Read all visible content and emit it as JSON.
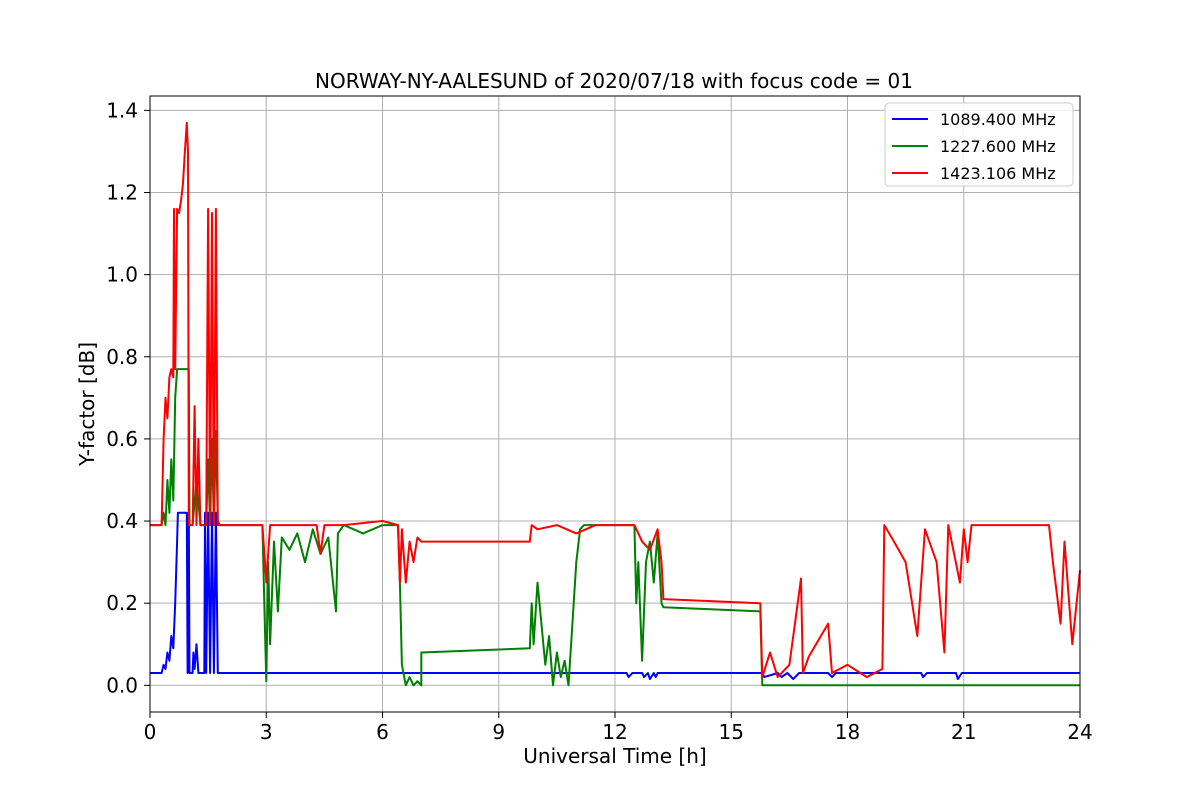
{
  "chart_data": {
    "type": "line",
    "title": "NORWAY-NY-AALESUND of 2020/07/18 with focus code = 01",
    "xlabel": "Universal Time [h]",
    "ylabel": "Y-factor [dB]",
    "xlim": [
      0,
      24
    ],
    "ylim": [
      -0.065,
      1.435
    ],
    "xticks": [
      0,
      3,
      6,
      9,
      12,
      15,
      18,
      21,
      24
    ],
    "yticks": [
      0.0,
      0.2,
      0.4,
      0.6,
      0.8,
      1.0,
      1.2,
      1.4
    ],
    "xtick_labels": [
      "0",
      "3",
      "6",
      "9",
      "12",
      "15",
      "18",
      "21",
      "24"
    ],
    "ytick_labels": [
      "0.0",
      "0.2",
      "0.4",
      "0.6",
      "0.8",
      "1.0",
      "1.2",
      "1.4"
    ],
    "grid": true,
    "legend_position": "top-right",
    "series": [
      {
        "name": "1089.400 MHz",
        "color": "#0000ff",
        "points": [
          [
            0,
            0.03
          ],
          [
            0.3,
            0.03
          ],
          [
            0.35,
            0.05
          ],
          [
            0.4,
            0.04
          ],
          [
            0.45,
            0.08
          ],
          [
            0.5,
            0.06
          ],
          [
            0.55,
            0.12
          ],
          [
            0.6,
            0.09
          ],
          [
            0.65,
            0.2
          ],
          [
            0.7,
            0.35
          ],
          [
            0.72,
            0.42
          ],
          [
            0.75,
            0.42
          ],
          [
            0.95,
            0.42
          ],
          [
            0.97,
            0.03
          ],
          [
            1.0,
            0.42
          ],
          [
            1.02,
            0.03
          ],
          [
            1.1,
            0.03
          ],
          [
            1.12,
            0.08
          ],
          [
            1.15,
            0.04
          ],
          [
            1.2,
            0.1
          ],
          [
            1.25,
            0.03
          ],
          [
            1.4,
            0.03
          ],
          [
            1.42,
            0.42
          ],
          [
            1.45,
            0.03
          ],
          [
            1.5,
            0.42
          ],
          [
            1.55,
            0.03
          ],
          [
            1.6,
            0.42
          ],
          [
            1.65,
            0.03
          ],
          [
            1.7,
            0.42
          ],
          [
            1.75,
            0.03
          ],
          [
            1.8,
            0.03
          ],
          [
            6.0,
            0.03
          ],
          [
            12.3,
            0.03
          ],
          [
            12.35,
            0.02
          ],
          [
            12.45,
            0.03
          ],
          [
            12.7,
            0.03
          ],
          [
            12.75,
            0.02
          ],
          [
            12.85,
            0.03
          ],
          [
            12.9,
            0.015
          ],
          [
            13.0,
            0.03
          ],
          [
            13.05,
            0.02
          ],
          [
            13.1,
            0.03
          ],
          [
            15.8,
            0.03
          ],
          [
            15.85,
            0.02
          ],
          [
            16.2,
            0.03
          ],
          [
            16.3,
            0.02
          ],
          [
            16.45,
            0.03
          ],
          [
            16.6,
            0.015
          ],
          [
            16.75,
            0.03
          ],
          [
            17.5,
            0.03
          ],
          [
            17.6,
            0.02
          ],
          [
            17.7,
            0.03
          ],
          [
            19.9,
            0.03
          ],
          [
            19.95,
            0.02
          ],
          [
            20.05,
            0.03
          ],
          [
            20.8,
            0.03
          ],
          [
            20.85,
            0.015
          ],
          [
            20.95,
            0.03
          ],
          [
            24,
            0.03
          ]
        ]
      },
      {
        "name": "1227.600 MHz",
        "color": "#008000",
        "points": [
          [
            0,
            0.39
          ],
          [
            0.3,
            0.39
          ],
          [
            0.35,
            0.42
          ],
          [
            0.4,
            0.39
          ],
          [
            0.45,
            0.5
          ],
          [
            0.5,
            0.42
          ],
          [
            0.55,
            0.55
          ],
          [
            0.6,
            0.45
          ],
          [
            0.65,
            0.7
          ],
          [
            0.7,
            0.77
          ],
          [
            0.95,
            0.77
          ],
          [
            1.0,
            0.77
          ],
          [
            1.02,
            0.39
          ],
          [
            1.1,
            0.39
          ],
          [
            1.2,
            0.5
          ],
          [
            1.3,
            0.39
          ],
          [
            1.45,
            0.39
          ],
          [
            1.5,
            0.55
          ],
          [
            1.55,
            0.39
          ],
          [
            1.6,
            0.6
          ],
          [
            1.65,
            0.39
          ],
          [
            1.7,
            0.62
          ],
          [
            1.75,
            0.4
          ],
          [
            1.8,
            0.39
          ],
          [
            2.9,
            0.39
          ],
          [
            2.95,
            0.2
          ],
          [
            3.0,
            0.01
          ],
          [
            3.05,
            0.3
          ],
          [
            3.1,
            0.1
          ],
          [
            3.2,
            0.35
          ],
          [
            3.3,
            0.18
          ],
          [
            3.4,
            0.36
          ],
          [
            3.6,
            0.33
          ],
          [
            3.8,
            0.37
          ],
          [
            4.0,
            0.3
          ],
          [
            4.2,
            0.38
          ],
          [
            4.4,
            0.32
          ],
          [
            4.6,
            0.36
          ],
          [
            4.8,
            0.18
          ],
          [
            4.85,
            0.37
          ],
          [
            5.0,
            0.39
          ],
          [
            5.5,
            0.37
          ],
          [
            6.0,
            0.39
          ],
          [
            6.4,
            0.39
          ],
          [
            6.45,
            0.25
          ],
          [
            6.5,
            0.05
          ],
          [
            6.6,
            0.0
          ],
          [
            6.7,
            0.02
          ],
          [
            6.8,
            0.0
          ],
          [
            6.9,
            0.01
          ],
          [
            7.0,
            0.0
          ],
          [
            7.0,
            0.08
          ],
          [
            9.8,
            0.09
          ],
          [
            9.85,
            0.2
          ],
          [
            9.9,
            0.1
          ],
          [
            10.0,
            0.25
          ],
          [
            10.1,
            0.15
          ],
          [
            10.2,
            0.05
          ],
          [
            10.3,
            0.12
          ],
          [
            10.4,
            0.0
          ],
          [
            10.5,
            0.08
          ],
          [
            10.6,
            0.02
          ],
          [
            10.7,
            0.06
          ],
          [
            10.8,
            0.0
          ],
          [
            10.9,
            0.15
          ],
          [
            11.0,
            0.3
          ],
          [
            11.1,
            0.38
          ],
          [
            11.2,
            0.39
          ],
          [
            12.5,
            0.39
          ],
          [
            12.55,
            0.2
          ],
          [
            12.6,
            0.3
          ],
          [
            12.7,
            0.06
          ],
          [
            12.8,
            0.3
          ],
          [
            12.9,
            0.35
          ],
          [
            13.0,
            0.25
          ],
          [
            13.1,
            0.37
          ],
          [
            13.2,
            0.2
          ],
          [
            13.25,
            0.19
          ],
          [
            15.75,
            0.18
          ],
          [
            15.8,
            0.0
          ],
          [
            24,
            0.0
          ]
        ]
      },
      {
        "name": "1423.106 MHz",
        "color": "#ff0000",
        "points": [
          [
            0,
            0.39
          ],
          [
            0.3,
            0.39
          ],
          [
            0.35,
            0.6
          ],
          [
            0.4,
            0.7
          ],
          [
            0.45,
            0.65
          ],
          [
            0.5,
            0.75
          ],
          [
            0.55,
            0.77
          ],
          [
            0.6,
            0.75
          ],
          [
            0.62,
            1.16
          ],
          [
            0.65,
            0.77
          ],
          [
            0.7,
            1.16
          ],
          [
            0.75,
            1.15
          ],
          [
            0.8,
            1.18
          ],
          [
            0.85,
            1.22
          ],
          [
            0.9,
            1.3
          ],
          [
            0.95,
            1.37
          ],
          [
            0.98,
            1.3
          ],
          [
            1.0,
            0.39
          ],
          [
            1.1,
            0.39
          ],
          [
            1.15,
            0.68
          ],
          [
            1.2,
            0.39
          ],
          [
            1.25,
            0.6
          ],
          [
            1.3,
            0.39
          ],
          [
            1.45,
            0.39
          ],
          [
            1.5,
            1.16
          ],
          [
            1.55,
            0.39
          ],
          [
            1.6,
            1.15
          ],
          [
            1.65,
            0.39
          ],
          [
            1.7,
            1.16
          ],
          [
            1.75,
            0.39
          ],
          [
            2.9,
            0.39
          ],
          [
            3.0,
            0.25
          ],
          [
            3.1,
            0.39
          ],
          [
            4.3,
            0.39
          ],
          [
            4.4,
            0.32
          ],
          [
            4.5,
            0.39
          ],
          [
            5.0,
            0.39
          ],
          [
            6.0,
            0.4
          ],
          [
            6.4,
            0.39
          ],
          [
            6.45,
            0.25
          ],
          [
            6.5,
            0.38
          ],
          [
            6.6,
            0.25
          ],
          [
            6.7,
            0.35
          ],
          [
            6.8,
            0.3
          ],
          [
            6.9,
            0.36
          ],
          [
            7.0,
            0.35
          ],
          [
            9.8,
            0.35
          ],
          [
            9.85,
            0.39
          ],
          [
            10.0,
            0.38
          ],
          [
            10.5,
            0.39
          ],
          [
            11.0,
            0.37
          ],
          [
            11.5,
            0.39
          ],
          [
            12.5,
            0.39
          ],
          [
            12.7,
            0.35
          ],
          [
            12.9,
            0.33
          ],
          [
            13.1,
            0.38
          ],
          [
            13.2,
            0.3
          ],
          [
            13.25,
            0.21
          ],
          [
            15.75,
            0.2
          ],
          [
            15.8,
            0.02
          ],
          [
            16.0,
            0.08
          ],
          [
            16.2,
            0.02
          ],
          [
            16.5,
            0.05
          ],
          [
            16.8,
            0.26
          ],
          [
            16.85,
            0.03
          ],
          [
            17.0,
            0.07
          ],
          [
            17.5,
            0.15
          ],
          [
            17.6,
            0.03
          ],
          [
            18.0,
            0.05
          ],
          [
            18.5,
            0.02
          ],
          [
            18.9,
            0.04
          ],
          [
            18.95,
            0.39
          ],
          [
            19.2,
            0.35
          ],
          [
            19.5,
            0.3
          ],
          [
            19.8,
            0.12
          ],
          [
            20.0,
            0.38
          ],
          [
            20.3,
            0.3
          ],
          [
            20.5,
            0.08
          ],
          [
            20.6,
            0.39
          ],
          [
            20.9,
            0.25
          ],
          [
            21.0,
            0.38
          ],
          [
            21.1,
            0.3
          ],
          [
            21.2,
            0.39
          ],
          [
            23.2,
            0.39
          ],
          [
            23.3,
            0.3
          ],
          [
            23.5,
            0.15
          ],
          [
            23.6,
            0.35
          ],
          [
            23.8,
            0.1
          ],
          [
            24,
            0.28
          ]
        ]
      }
    ]
  }
}
